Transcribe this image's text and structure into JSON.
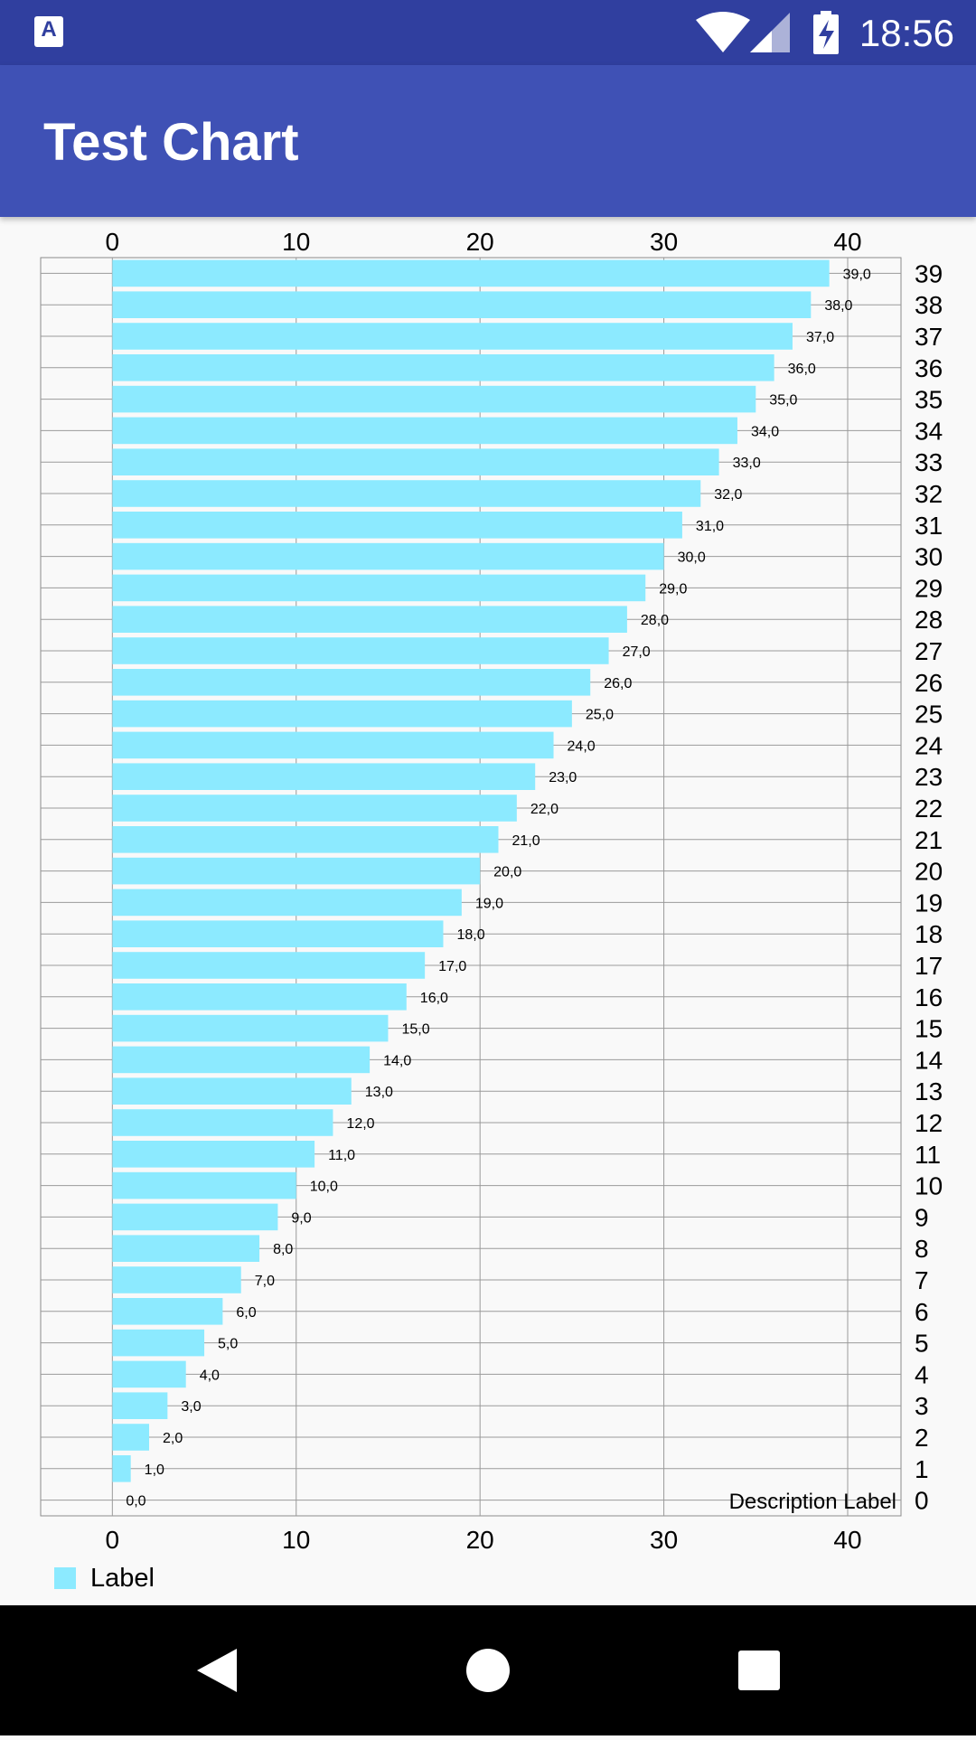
{
  "status_bar": {
    "time": "18:56",
    "icons": [
      "app-notification-icon",
      "wifi-icon",
      "signal-icon",
      "battery-charging-icon"
    ]
  },
  "app_bar": {
    "title": "Test Chart"
  },
  "chart_data": {
    "type": "bar",
    "orientation": "horizontal",
    "categories": [
      "0",
      "1",
      "2",
      "3",
      "4",
      "5",
      "6",
      "7",
      "8",
      "9",
      "10",
      "11",
      "12",
      "13",
      "14",
      "15",
      "16",
      "17",
      "18",
      "19",
      "20",
      "21",
      "22",
      "23",
      "24",
      "25",
      "26",
      "27",
      "28",
      "29",
      "30",
      "31",
      "32",
      "33",
      "34",
      "35",
      "36",
      "37",
      "38",
      "39"
    ],
    "series": [
      {
        "name": "Label",
        "color": "#8ceaff",
        "values": [
          0,
          1,
          2,
          3,
          4,
          5,
          6,
          7,
          8,
          9,
          10,
          11,
          12,
          13,
          14,
          15,
          16,
          17,
          18,
          19,
          20,
          21,
          22,
          23,
          24,
          25,
          26,
          27,
          28,
          29,
          30,
          31,
          32,
          33,
          34,
          35,
          36,
          37,
          38,
          39
        ],
        "value_labels": [
          "0,0",
          "1,0",
          "2,0",
          "3,0",
          "4,0",
          "5,0",
          "6,0",
          "7,0",
          "8,0",
          "9,0",
          "10,0",
          "11,0",
          "12,0",
          "13,0",
          "14,0",
          "15,0",
          "16,0",
          "17,0",
          "18,0",
          "19,0",
          "20,0",
          "21,0",
          "22,0",
          "23,0",
          "24,0",
          "25,0",
          "26,0",
          "27,0",
          "28,0",
          "29,0",
          "30,0",
          "31,0",
          "32,0",
          "33,0",
          "34,0",
          "35,0",
          "36,0",
          "37,0",
          "38,0",
          "39,0"
        ]
      }
    ],
    "value_axis": {
      "min": -3.9,
      "max": 42.9,
      "ticks": [
        0,
        10,
        20,
        30,
        40
      ],
      "tick_labels": [
        "0",
        "10",
        "20",
        "30",
        "40"
      ],
      "positions": [
        "top",
        "bottom"
      ]
    },
    "category_axis": {
      "position": "right"
    },
    "grid": true,
    "description": "Description Label",
    "legend": {
      "position": "bottom-left",
      "label": "Label"
    }
  },
  "nav_bar": {
    "buttons": [
      "back-icon",
      "home-icon",
      "recents-icon"
    ]
  }
}
